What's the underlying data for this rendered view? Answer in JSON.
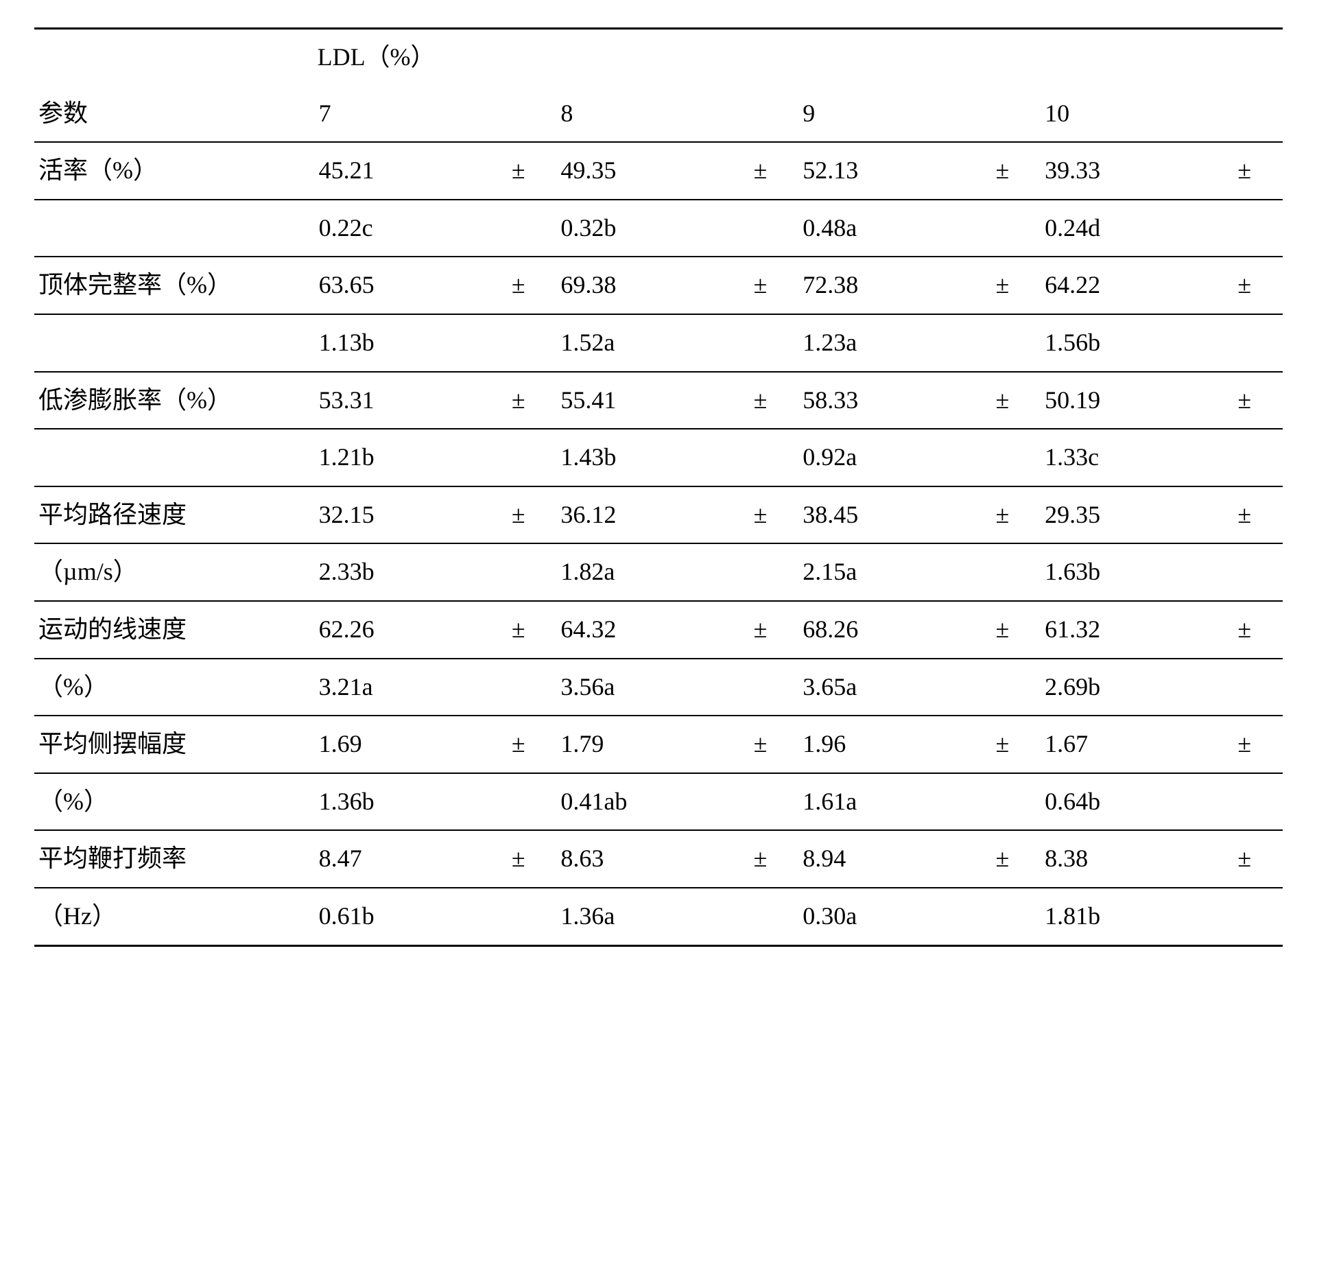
{
  "table": {
    "spanner_label": "LDL（%）",
    "param_header": "参数",
    "level_headers": [
      "7",
      "8",
      "9",
      "10"
    ],
    "pm": "±",
    "rows": [
      {
        "label_line1": "活率（%）",
        "label_line2": "",
        "cells": [
          {
            "v": "45.21",
            "sd": "0.22c"
          },
          {
            "v": "49.35",
            "sd": "0.32b"
          },
          {
            "v": "52.13",
            "sd": "0.48a"
          },
          {
            "v": "39.33",
            "sd": "0.24d"
          }
        ]
      },
      {
        "label_line1": "顶体完整率（%）",
        "label_line2": "",
        "cells": [
          {
            "v": "63.65",
            "sd": "1.13b"
          },
          {
            "v": "69.38",
            "sd": "1.52a"
          },
          {
            "v": "72.38",
            "sd": "1.23a"
          },
          {
            "v": "64.22",
            "sd": "1.56b"
          }
        ]
      },
      {
        "label_line1": "低渗膨胀率（%）",
        "label_line2": "",
        "cells": [
          {
            "v": "53.31",
            "sd": "1.21b"
          },
          {
            "v": "55.41",
            "sd": "1.43b"
          },
          {
            "v": "58.33",
            "sd": "0.92a"
          },
          {
            "v": "50.19",
            "sd": "1.33c"
          }
        ]
      },
      {
        "label_line1": "平均路径速度",
        "label_line2": "（µm/s）",
        "cells": [
          {
            "v": "32.15",
            "sd": "2.33b"
          },
          {
            "v": "36.12",
            "sd": "1.82a"
          },
          {
            "v": "38.45",
            "sd": "2.15a"
          },
          {
            "v": "29.35",
            "sd": "1.63b"
          }
        ]
      },
      {
        "label_line1": "运动的线速度",
        "label_line2": "（%）",
        "cells": [
          {
            "v": "62.26",
            "sd": "3.21a"
          },
          {
            "v": "64.32",
            "sd": "3.56a"
          },
          {
            "v": "68.26",
            "sd": "3.65a"
          },
          {
            "v": "61.32",
            "sd": "2.69b"
          }
        ]
      },
      {
        "label_line1": "平均侧摆幅度",
        "label_line2": "（%）",
        "cells": [
          {
            "v": "1.69",
            "sd": "1.36b"
          },
          {
            "v": "1.79",
            "sd": "0.41ab"
          },
          {
            "v": "1.96",
            "sd": "1.61a"
          },
          {
            "v": "1.67",
            "sd": "0.64b"
          }
        ]
      },
      {
        "label_line1": "平均鞭打频率",
        "label_line2": "（Hz）",
        "cells": [
          {
            "v": "8.47",
            "sd": "0.61b"
          },
          {
            "v": "8.63",
            "sd": "1.36a"
          },
          {
            "v": "8.94",
            "sd": "0.30a"
          },
          {
            "v": "8.38",
            "sd": "1.81b"
          }
        ]
      }
    ]
  },
  "style": {
    "font_size_pt": 27,
    "text_color": "#000000",
    "background": "#ffffff",
    "rule_color": "#000000"
  }
}
